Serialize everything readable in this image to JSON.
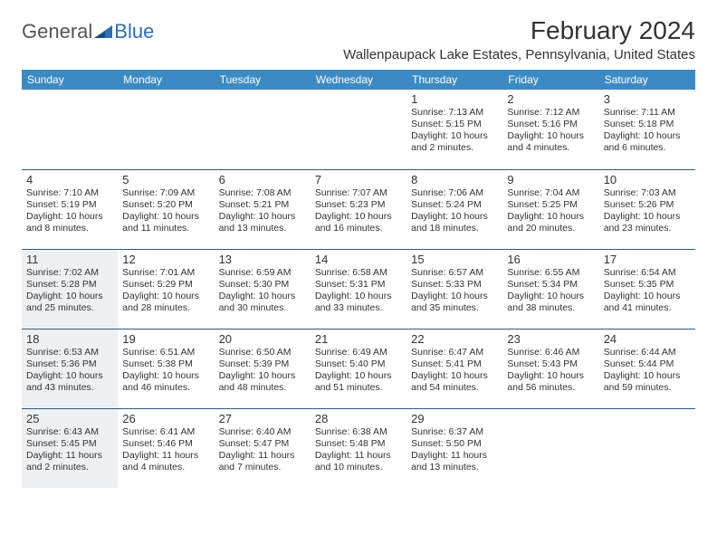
{
  "logo": {
    "general": "General",
    "blue": "Blue"
  },
  "title": "February 2024",
  "location": "Wallenpaupack Lake Estates, Pennsylvania, United States",
  "colors": {
    "header_bg": "#3b8ac4",
    "header_text": "#ffffff",
    "row_separator": "#2f5a80",
    "cell_fill": "#eef1f3",
    "text": "#333333",
    "logo_blue": "#2f6fb0"
  },
  "dayHeaders": [
    "Sunday",
    "Monday",
    "Tuesday",
    "Wednesday",
    "Thursday",
    "Friday",
    "Saturday"
  ],
  "weeks": [
    [
      null,
      null,
      null,
      null,
      {
        "n": "1",
        "sr": "7:13 AM",
        "ss": "5:15 PM",
        "dl": "10 hours and 2 minutes."
      },
      {
        "n": "2",
        "sr": "7:12 AM",
        "ss": "5:16 PM",
        "dl": "10 hours and 4 minutes."
      },
      {
        "n": "3",
        "sr": "7:11 AM",
        "ss": "5:18 PM",
        "dl": "10 hours and 6 minutes."
      }
    ],
    [
      {
        "n": "4",
        "sr": "7:10 AM",
        "ss": "5:19 PM",
        "dl": "10 hours and 8 minutes."
      },
      {
        "n": "5",
        "sr": "7:09 AM",
        "ss": "5:20 PM",
        "dl": "10 hours and 11 minutes."
      },
      {
        "n": "6",
        "sr": "7:08 AM",
        "ss": "5:21 PM",
        "dl": "10 hours and 13 minutes."
      },
      {
        "n": "7",
        "sr": "7:07 AM",
        "ss": "5:23 PM",
        "dl": "10 hours and 16 minutes."
      },
      {
        "n": "8",
        "sr": "7:06 AM",
        "ss": "5:24 PM",
        "dl": "10 hours and 18 minutes."
      },
      {
        "n": "9",
        "sr": "7:04 AM",
        "ss": "5:25 PM",
        "dl": "10 hours and 20 minutes."
      },
      {
        "n": "10",
        "sr": "7:03 AM",
        "ss": "5:26 PM",
        "dl": "10 hours and 23 minutes."
      }
    ],
    [
      {
        "n": "11",
        "sr": "7:02 AM",
        "ss": "5:28 PM",
        "dl": "10 hours and 25 minutes.",
        "f": true
      },
      {
        "n": "12",
        "sr": "7:01 AM",
        "ss": "5:29 PM",
        "dl": "10 hours and 28 minutes."
      },
      {
        "n": "13",
        "sr": "6:59 AM",
        "ss": "5:30 PM",
        "dl": "10 hours and 30 minutes."
      },
      {
        "n": "14",
        "sr": "6:58 AM",
        "ss": "5:31 PM",
        "dl": "10 hours and 33 minutes."
      },
      {
        "n": "15",
        "sr": "6:57 AM",
        "ss": "5:33 PM",
        "dl": "10 hours and 35 minutes."
      },
      {
        "n": "16",
        "sr": "6:55 AM",
        "ss": "5:34 PM",
        "dl": "10 hours and 38 minutes."
      },
      {
        "n": "17",
        "sr": "6:54 AM",
        "ss": "5:35 PM",
        "dl": "10 hours and 41 minutes."
      }
    ],
    [
      {
        "n": "18",
        "sr": "6:53 AM",
        "ss": "5:36 PM",
        "dl": "10 hours and 43 minutes.",
        "f": true
      },
      {
        "n": "19",
        "sr": "6:51 AM",
        "ss": "5:38 PM",
        "dl": "10 hours and 46 minutes."
      },
      {
        "n": "20",
        "sr": "6:50 AM",
        "ss": "5:39 PM",
        "dl": "10 hours and 48 minutes."
      },
      {
        "n": "21",
        "sr": "6:49 AM",
        "ss": "5:40 PM",
        "dl": "10 hours and 51 minutes."
      },
      {
        "n": "22",
        "sr": "6:47 AM",
        "ss": "5:41 PM",
        "dl": "10 hours and 54 minutes."
      },
      {
        "n": "23",
        "sr": "6:46 AM",
        "ss": "5:43 PM",
        "dl": "10 hours and 56 minutes."
      },
      {
        "n": "24",
        "sr": "6:44 AM",
        "ss": "5:44 PM",
        "dl": "10 hours and 59 minutes."
      }
    ],
    [
      {
        "n": "25",
        "sr": "6:43 AM",
        "ss": "5:45 PM",
        "dl": "11 hours and 2 minutes.",
        "f": true
      },
      {
        "n": "26",
        "sr": "6:41 AM",
        "ss": "5:46 PM",
        "dl": "11 hours and 4 minutes."
      },
      {
        "n": "27",
        "sr": "6:40 AM",
        "ss": "5:47 PM",
        "dl": "11 hours and 7 minutes."
      },
      {
        "n": "28",
        "sr": "6:38 AM",
        "ss": "5:48 PM",
        "dl": "11 hours and 10 minutes."
      },
      {
        "n": "29",
        "sr": "6:37 AM",
        "ss": "5:50 PM",
        "dl": "11 hours and 13 minutes."
      },
      null,
      null
    ]
  ],
  "labels": {
    "sunrise": "Sunrise:",
    "sunset": "Sunset:",
    "daylight": "Daylight:"
  }
}
